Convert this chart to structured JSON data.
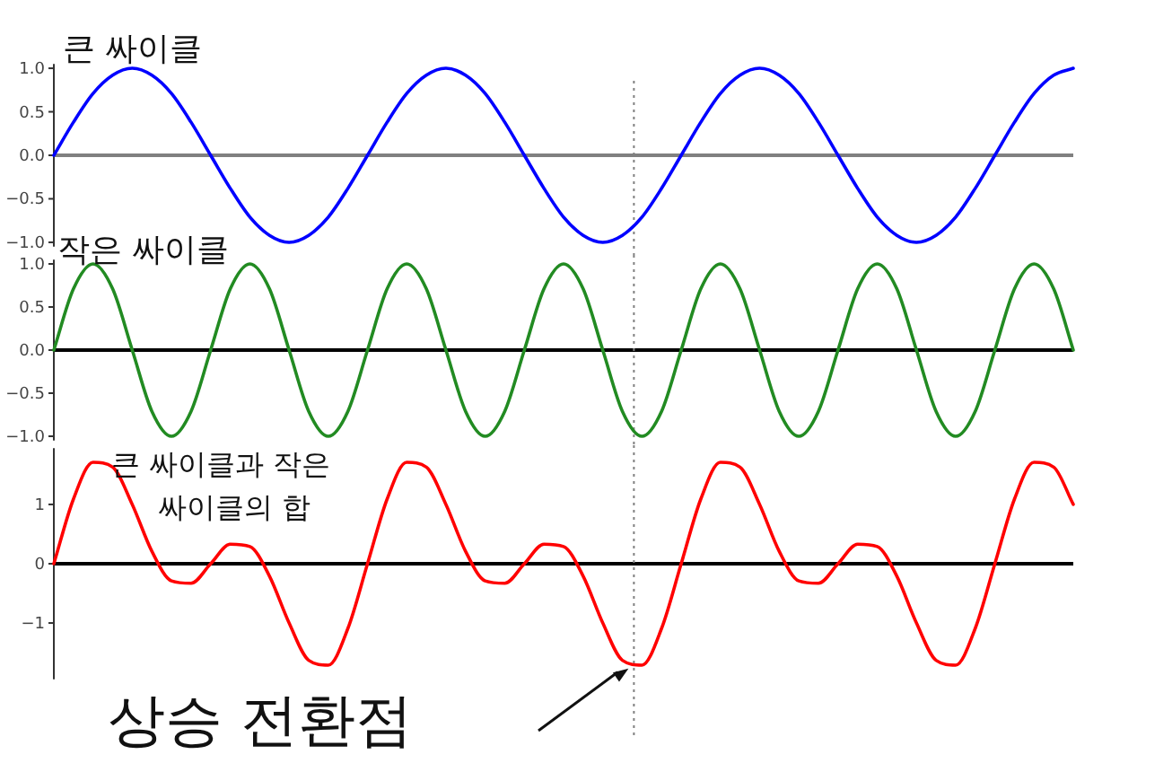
{
  "chart_data": [
    {
      "type": "line",
      "title": "큰 싸이클",
      "categories": [
        null,
        null,
        null,
        null,
        null,
        null,
        null,
        null,
        null,
        null,
        null,
        null,
        null,
        null,
        null,
        null,
        null,
        null,
        null,
        null,
        null,
        null,
        null,
        null,
        null,
        null,
        null,
        null,
        null,
        null,
        null,
        null,
        null,
        null,
        null,
        null,
        null,
        null,
        null,
        null,
        null,
        null,
        null,
        null,
        null,
        null,
        null,
        null,
        null,
        null,
        null,
        null,
        null
      ],
      "series": [
        {
          "color": "#0000ff",
          "values": [
            0,
            0.38,
            0.71,
            0.92,
            1,
            0.92,
            0.71,
            0.38,
            0,
            -0.38,
            -0.71,
            -0.92,
            -1,
            -0.92,
            -0.71,
            -0.38,
            0,
            0.38,
            0.71,
            0.92,
            1,
            0.92,
            0.71,
            0.38,
            0,
            -0.38,
            -0.71,
            -0.92,
            -1,
            -0.92,
            -0.71,
            -0.38,
            0,
            0.38,
            0.71,
            0.92,
            1,
            0.92,
            0.71,
            0.38,
            0,
            -0.38,
            -0.71,
            -0.92,
            -1,
            -0.92,
            -0.71,
            -0.38,
            0,
            0.38,
            0.71,
            0.92,
            1
          ]
        }
      ],
      "ylim": [
        -1.05,
        1.05
      ],
      "yticks": [
        {
          "value": -1,
          "label": "−1.0"
        },
        {
          "value": -0.5,
          "label": "−0.5"
        },
        {
          "value": 0,
          "label": "0.0"
        },
        {
          "value": 0.5,
          "label": "0.5"
        },
        {
          "value": 1,
          "label": "1.0"
        }
      ],
      "tick_labels": "y",
      "grid": false,
      "ref_lines": [
        {
          "axis": "y",
          "value": 0,
          "color": "#808080",
          "line_style": "solid"
        }
      ]
    },
    {
      "type": "line",
      "title": "작은 싸이클",
      "categories": [
        null,
        null,
        null,
        null,
        null,
        null,
        null,
        null,
        null,
        null,
        null,
        null,
        null,
        null,
        null,
        null,
        null,
        null,
        null,
        null,
        null,
        null,
        null,
        null,
        null,
        null,
        null,
        null,
        null,
        null,
        null,
        null,
        null,
        null,
        null,
        null,
        null,
        null,
        null,
        null,
        null,
        null,
        null,
        null,
        null,
        null,
        null,
        null,
        null,
        null,
        null,
        null,
        null
      ],
      "series": [
        {
          "color": "#228b22",
          "values": [
            0,
            0.71,
            1,
            0.71,
            0,
            -0.71,
            -1,
            -0.71,
            0,
            0.71,
            1,
            0.71,
            0,
            -0.71,
            -1,
            -0.71,
            0,
            0.71,
            1,
            0.71,
            0,
            -0.71,
            -1,
            -0.71,
            0,
            0.71,
            1,
            0.71,
            0,
            -0.71,
            -1,
            -0.71,
            0,
            0.71,
            1,
            0.71,
            0,
            -0.71,
            -1,
            -0.71,
            0,
            0.71,
            1,
            0.71,
            0,
            -0.71,
            -1,
            -0.71,
            0,
            0.71,
            1,
            0.71,
            0
          ]
        }
      ],
      "ylim": [
        -1.05,
        1.05
      ],
      "yticks": [
        {
          "value": -1,
          "label": "−1.0"
        },
        {
          "value": -0.5,
          "label": "−0.5"
        },
        {
          "value": 0,
          "label": "0.0"
        },
        {
          "value": 0.5,
          "label": "0.5"
        },
        {
          "value": 1,
          "label": "1.0"
        }
      ],
      "tick_labels": "y",
      "grid": false,
      "ref_lines": [
        {
          "axis": "y",
          "value": 0,
          "color": "#000000",
          "line_style": "solid"
        }
      ]
    },
    {
      "type": "line",
      "title": "큰 싸이클과 작은 싸이클의 합",
      "categories": [
        null,
        null,
        null,
        null,
        null,
        null,
        null,
        null,
        null,
        null,
        null,
        null,
        null,
        null,
        null,
        null,
        null,
        null,
        null,
        null,
        null,
        null,
        null,
        null,
        null,
        null,
        null,
        null,
        null,
        null,
        null,
        null,
        null,
        null,
        null,
        null,
        null,
        null,
        null,
        null,
        null,
        null,
        null,
        null,
        null,
        null,
        null,
        null,
        null,
        null,
        null,
        null,
        null
      ],
      "series": [
        {
          "color": "#ff0000",
          "values": [
            0,
            1.09,
            1.71,
            1.63,
            1,
            0.21,
            -0.29,
            -0.33,
            0,
            0.33,
            0.29,
            -0.21,
            -1,
            -1.63,
            -1.71,
            -1.09,
            0,
            1.09,
            1.71,
            1.63,
            1,
            0.21,
            -0.29,
            -0.33,
            0,
            0.33,
            0.29,
            -0.21,
            -1,
            -1.63,
            -1.71,
            -1.09,
            0,
            1.09,
            1.71,
            1.63,
            1,
            0.21,
            -0.29,
            -0.33,
            0,
            0.33,
            0.29,
            -0.21,
            -1,
            -1.63,
            -1.71,
            -1.09,
            0,
            1.09,
            1.71,
            1.63,
            1
          ]
        }
      ],
      "ylim": [
        -1.95,
        1.95
      ],
      "yticks": [
        {
          "value": -1,
          "label": "−1"
        },
        {
          "value": 0,
          "label": "0"
        },
        {
          "value": 1,
          "label": "1"
        }
      ],
      "tick_labels": "y",
      "grid": false,
      "ref_lines": [
        {
          "axis": "y",
          "value": 0,
          "color": "#000000",
          "line_style": "solid"
        }
      ],
      "annotations": [
        "상승 전환점"
      ]
    }
  ]
}
